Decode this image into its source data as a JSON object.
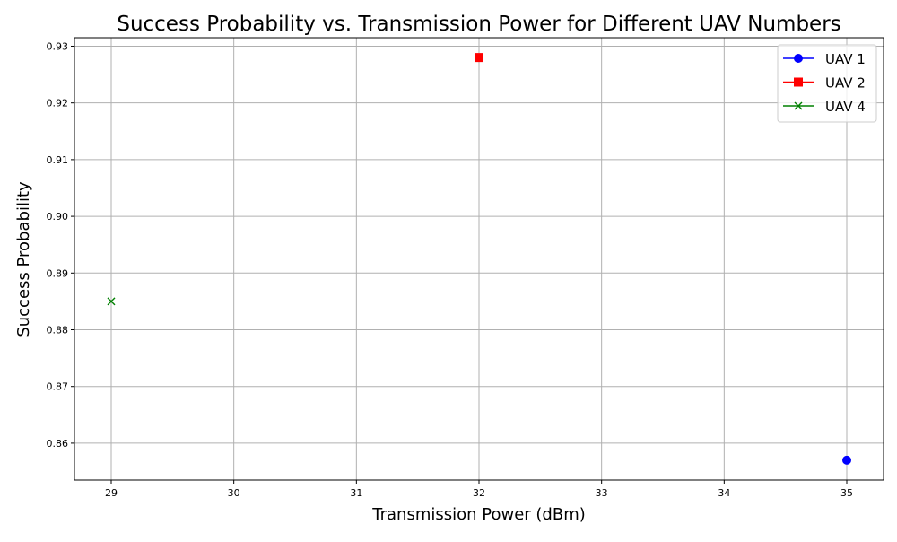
{
  "chart_data": {
    "type": "scatter",
    "title": "Success Probability vs. Transmission Power for Different UAV Numbers",
    "xlabel": "Transmission Power (dBm)",
    "ylabel": "Success Probability",
    "xlim": [
      28.7,
      35.3
    ],
    "ylim": [
      0.8535,
      0.9315
    ],
    "xticks": [
      29,
      30,
      31,
      32,
      33,
      34,
      35
    ],
    "yticks": [
      0.86,
      0.87,
      0.88,
      0.89,
      0.9,
      0.91,
      0.92,
      0.93
    ],
    "ytick_labels": [
      "0.86",
      "0.87",
      "0.88",
      "0.89",
      "0.90",
      "0.91",
      "0.92",
      "0.93"
    ],
    "grid": true,
    "legend_position": "top-right",
    "series": [
      {
        "name": "UAV 1",
        "color": "#0000ff",
        "marker": "circle",
        "points": [
          {
            "x": 35,
            "y": 0.857
          }
        ]
      },
      {
        "name": "UAV 2",
        "color": "#ff0000",
        "marker": "square",
        "points": [
          {
            "x": 32,
            "y": 0.928
          }
        ]
      },
      {
        "name": "UAV 4",
        "color": "#008000",
        "marker": "x",
        "points": [
          {
            "x": 29,
            "y": 0.885
          }
        ]
      }
    ]
  }
}
